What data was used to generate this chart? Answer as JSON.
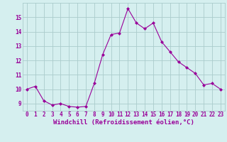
{
  "x": [
    0,
    1,
    2,
    3,
    4,
    5,
    6,
    7,
    8,
    9,
    10,
    11,
    12,
    13,
    14,
    15,
    16,
    17,
    18,
    19,
    20,
    21,
    22,
    23
  ],
  "y": [
    10.0,
    10.2,
    9.2,
    8.9,
    9.0,
    8.8,
    8.75,
    8.8,
    10.4,
    12.4,
    13.8,
    13.9,
    15.6,
    14.6,
    14.2,
    14.6,
    13.3,
    12.6,
    11.9,
    11.5,
    11.1,
    10.3,
    10.4,
    10.0
  ],
  "line_color": "#990099",
  "marker": "D",
  "marker_size": 2,
  "bg_color": "#d5efef",
  "grid_color": "#aacccc",
  "xlabel": "Windchill (Refroidissement éolien,°C)",
  "xlabel_color": "#990099",
  "xlabel_fontsize": 6.5,
  "tick_color": "#990099",
  "tick_fontsize": 5.5,
  "ylim": [
    8.5,
    16.0
  ],
  "xlim": [
    -0.5,
    23.5
  ],
  "yticks": [
    9,
    10,
    11,
    12,
    13,
    14,
    15
  ],
  "xticks": [
    0,
    1,
    2,
    3,
    4,
    5,
    6,
    7,
    8,
    9,
    10,
    11,
    12,
    13,
    14,
    15,
    16,
    17,
    18,
    19,
    20,
    21,
    22,
    23
  ]
}
